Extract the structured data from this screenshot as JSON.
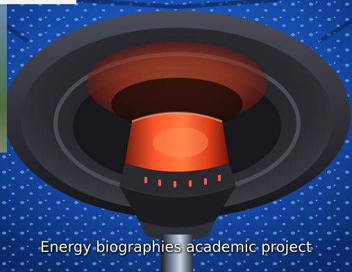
{
  "caption": "Energy biographies academic project",
  "image": {
    "subject": "patio-heater-photo"
  }
}
